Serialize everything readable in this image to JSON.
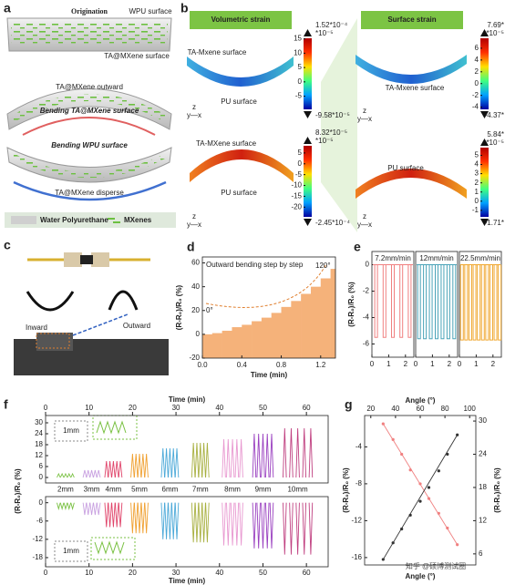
{
  "panel_labels": [
    "a",
    "b",
    "c",
    "d",
    "e",
    "f",
    "g"
  ],
  "a": {
    "texts": [
      "Origination",
      "WPU surface",
      "TA@MXene surface",
      "TA@MXene outward",
      "Bending TA@MXene surface",
      "Bending WPU surface",
      "TA@MXene disperse"
    ],
    "legend": [
      "Water Polyurethane",
      "MXenes"
    ]
  },
  "b": {
    "headers": [
      "Volumetric strain",
      "Surface strain"
    ],
    "model_labels": [
      "TA-Mxene surface",
      "PU surface",
      "TA-MXene surface",
      "PU surface",
      "TA-Mxene surface",
      "PU surface"
    ],
    "axes_labels": [
      "z",
      "y—x"
    ],
    "colorbars": [
      {
        "top_label": "1.52*10⁻⁴",
        "unit": "*10⁻⁵",
        "bottom_label": "-9.58*10⁻⁵",
        "clim": [
          -9.58,
          15.2
        ],
        "ticks": [
          15,
          10,
          5,
          0,
          -5
        ]
      },
      {
        "top_label": "8.32*10⁻⁵",
        "unit": "*10⁻⁵",
        "bottom_label": "-2.45*10⁻⁴",
        "clim": [
          -24.5,
          8.32
        ],
        "ticks": [
          5,
          0,
          -5,
          -10,
          -15,
          -20
        ]
      },
      {
        "top_label": "7.69*",
        "unit": "*10⁻⁵",
        "bottom_label": "-4.37*",
        "clim": [
          -4.37,
          7.69
        ],
        "ticks": [
          6,
          4,
          2,
          0,
          -2,
          -4
        ]
      },
      {
        "top_label": "5.84*",
        "unit": "*10⁻⁵",
        "bottom_label": "-1.71*",
        "clim": [
          -1.71,
          5.84
        ],
        "ticks": [
          5,
          4,
          3,
          2,
          1,
          0,
          -1
        ]
      }
    ]
  },
  "c": {
    "labels": [
      "Inward",
      "Outward"
    ]
  },
  "watermark": "知乎 @硕博测试圈",
  "chart_data": [
    {
      "type": "step-area",
      "title": "Outward bending step by step",
      "annotations": [
        "0°",
        "120°"
      ],
      "xlabel": "Time (min)",
      "ylabel": "(R-R₀)/R₀ (%)",
      "color": "#f5b27a",
      "x": [
        0,
        0.1,
        0.2,
        0.3,
        0.4,
        0.5,
        0.6,
        0.7,
        0.8,
        0.9,
        1.0,
        1.1,
        1.2,
        1.3
      ],
      "values": [
        0,
        1,
        3,
        6,
        8,
        11,
        14,
        18,
        23,
        28,
        34,
        40,
        47,
        55
      ],
      "xlim": [
        0,
        1.35
      ],
      "ylim": [
        -20,
        65
      ],
      "xticks": [
        {
          "value": 0,
          "label": "0.0"
        },
        0.4,
        0.8,
        1.2
      ],
      "yticks": [
        -20,
        0,
        20,
        40,
        60
      ]
    },
    {
      "type": "pulses",
      "ylabel": "(R-R₀)/R₀ (%)",
      "xlim": [
        0,
        2.5
      ],
      "xticks": [
        0,
        1,
        2
      ],
      "ylim": [
        -7,
        1
      ],
      "yticks": [
        0,
        -2,
        -4,
        -6
      ],
      "series": [
        {
          "name": "7.2mm/min",
          "color": "#f08080",
          "x": [
            0.25,
            0.75,
            1.25,
            1.75,
            2.25
          ],
          "values": [
            -5.5,
            -5.5,
            -5.5,
            -5.5,
            -5.5
          ]
        },
        {
          "name": "12mm/min",
          "color": "#4aa3b8",
          "x": [
            0.2,
            0.55,
            0.9,
            1.25,
            1.6,
            1.95,
            2.3
          ],
          "values": [
            -5.6,
            -5.6,
            -5.6,
            -5.6,
            -5.6,
            -5.6,
            -5.6
          ]
        },
        {
          "name": "22.5mm/min",
          "color": "#f0a830",
          "x": [
            0.15,
            0.4,
            0.65,
            0.9,
            1.15,
            1.4,
            1.65,
            1.9,
            2.15,
            2.4
          ],
          "values": [
            -5.7,
            -5.7,
            -5.7,
            -5.7,
            -5.7,
            -5.7,
            -5.7,
            -5.7,
            -5.7,
            -5.7
          ]
        }
      ]
    },
    {
      "type": "spikes",
      "xlabel": "Time (min)",
      "ylabel": "(R-R₀)/R₀ (%)",
      "inset_label": "1mm",
      "xlim": [
        0,
        65
      ],
      "xticks": [
        0,
        10,
        20,
        30,
        40,
        50,
        60
      ],
      "panels": [
        {
          "ylim": [
            -3,
            34
          ],
          "yticks": [
            0,
            6,
            12,
            18,
            24,
            30
          ],
          "series": [
            {
              "name": "2mm",
              "color": "#7ac143",
              "x": [
                3,
                3.8,
                4.6,
                5.4,
                6.2
              ],
              "values": [
                2,
                2,
                2,
                2,
                2
              ]
            },
            {
              "name": "3mm",
              "color": "#c8a0e0",
              "x": [
                9,
                9.8,
                10.6,
                11.4,
                12.2
              ],
              "values": [
                4,
                4,
                4,
                4,
                4
              ]
            },
            {
              "name": "4mm",
              "color": "#e0446a",
              "x": [
                14,
                14.8,
                15.6,
                16.4,
                17.2
              ],
              "values": [
                9,
                9,
                9,
                9,
                9
              ]
            },
            {
              "name": "5mm",
              "color": "#f0a030",
              "x": [
                20,
                20.8,
                21.6,
                22.4,
                23.2
              ],
              "values": [
                13,
                13,
                13,
                13,
                13
              ]
            },
            {
              "name": "6mm",
              "color": "#4aa8d8",
              "x": [
                27,
                27.8,
                28.6,
                29.4,
                30.2
              ],
              "values": [
                16,
                16,
                16,
                16,
                16
              ]
            },
            {
              "name": "7mm",
              "color": "#a8b040",
              "x": [
                34,
                34.8,
                35.6,
                36.4,
                37.2
              ],
              "values": [
                19,
                19,
                19,
                19,
                19
              ]
            },
            {
              "name": "8mm",
              "color": "#e898d0",
              "x": [
                41,
                42,
                43,
                44,
                45
              ],
              "values": [
                21,
                21,
                21,
                21,
                21
              ]
            },
            {
              "name": "9mm",
              "color": "#9a40c0",
              "x": [
                48,
                49,
                50,
                51,
                52
              ],
              "values": [
                24,
                24,
                24,
                24,
                24
              ]
            },
            {
              "name": "10mm",
              "color": "#c04080",
              "x": [
                55,
                56.5,
                58,
                59.5,
                61
              ],
              "values": [
                27,
                27,
                27,
                27,
                27
              ]
            }
          ]
        },
        {
          "ylim": [
            -21,
            2
          ],
          "yticks": [
            -18,
            -12,
            -6,
            0
          ],
          "series": [
            {
              "color": "#7ac143",
              "x": [
                3,
                3.8,
                4.6,
                5.4,
                6.2
              ],
              "values": [
                -2,
                -2,
                -2,
                -2,
                -2
              ]
            },
            {
              "color": "#c8a0e0",
              "x": [
                9,
                9.8,
                10.6,
                11.4,
                12.2
              ],
              "values": [
                -4,
                -4,
                -4,
                -4,
                -4
              ]
            },
            {
              "color": "#e0446a",
              "x": [
                14,
                14.8,
                15.6,
                16.4,
                17.2
              ],
              "values": [
                -8,
                -8,
                -8,
                -8,
                -8
              ]
            },
            {
              "color": "#f0a030",
              "x": [
                20,
                20.8,
                21.6,
                22.4,
                23.2
              ],
              "values": [
                -10,
                -10,
                -10,
                -10,
                -10
              ]
            },
            {
              "color": "#4aa8d8",
              "x": [
                27,
                27.8,
                28.6,
                29.4,
                30.2
              ],
              "values": [
                -12,
                -12,
                -12,
                -12,
                -12
              ]
            },
            {
              "color": "#a8b040",
              "x": [
                34,
                34.8,
                35.6,
                36.4,
                37.2
              ],
              "values": [
                -13,
                -13,
                -13,
                -13,
                -13
              ]
            },
            {
              "color": "#e898d0",
              "x": [
                41,
                42,
                43,
                44,
                45
              ],
              "values": [
                -14,
                -14,
                -14,
                -14,
                -14
              ]
            },
            {
              "color": "#9a40c0",
              "x": [
                48,
                49,
                50,
                51,
                52
              ],
              "values": [
                -15,
                -15,
                -15,
                -15,
                -15
              ]
            },
            {
              "color": "#c04080",
              "x": [
                55,
                56.5,
                58,
                59.5,
                61
              ],
              "values": [
                -17,
                -17,
                -17,
                -17,
                -17
              ]
            }
          ]
        }
      ]
    },
    {
      "type": "scatter-dual",
      "xlabel_top": "Angle (°)",
      "xlabel_bottom": "Angle (°)",
      "ylabel": "(R-R₀)/R₀ (%)",
      "y2label": "(R-R₀)/R₀ (%)",
      "xlim": [
        15,
        105
      ],
      "xticks": [
        20,
        40,
        60,
        80,
        100
      ],
      "ylim": [
        -16.8,
        -0.6
      ],
      "yticks": [
        -4,
        -8,
        -12,
        -16
      ],
      "y2lim": [
        4,
        31
      ],
      "y2ticks": [
        6,
        12,
        18,
        24,
        30
      ],
      "series": [
        {
          "color": "#f08080",
          "x": [
            30,
            38,
            45,
            52,
            60,
            67,
            75,
            82,
            90
          ],
          "values": [
            -1.5,
            -3.2,
            -4.8,
            -6.5,
            -8,
            -9.6,
            -11.2,
            -12.8,
            -14.6
          ]
        },
        {
          "color": "#333333",
          "axis": "y2",
          "x": [
            30,
            38,
            45,
            52,
            60,
            67,
            75,
            82,
            90
          ],
          "values": [
            5,
            8,
            10.5,
            13,
            15.5,
            18,
            21,
            24,
            27.5
          ]
        }
      ]
    }
  ]
}
